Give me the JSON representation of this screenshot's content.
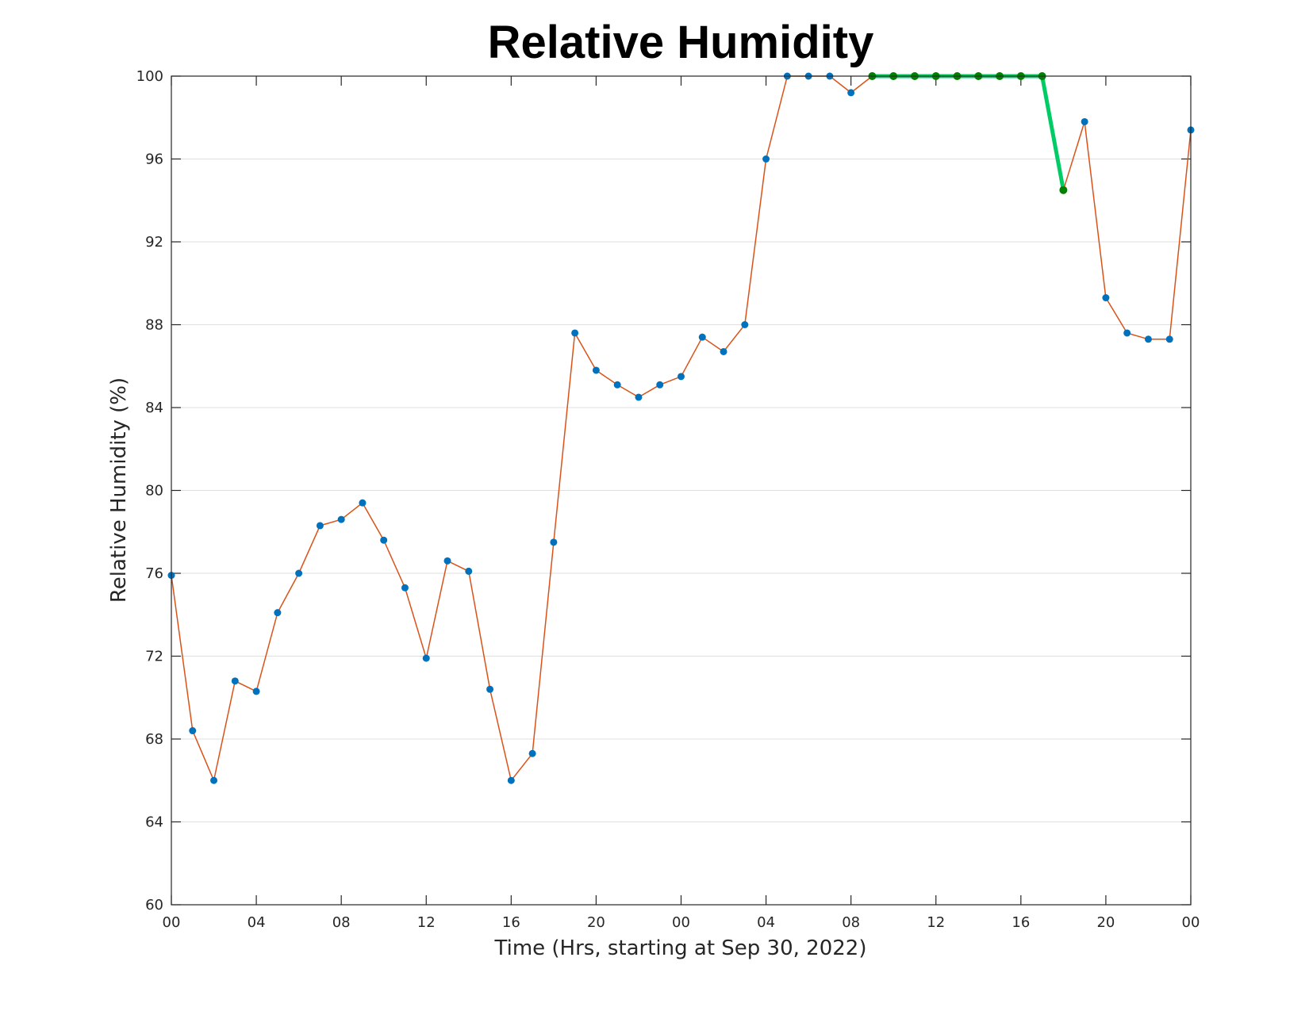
{
  "chart_data": {
    "type": "line",
    "title": "Relative Humidity",
    "xlabel": "Time (Hrs, starting at Sep 30, 2022)",
    "ylabel": "Relative Humidity (%)",
    "ylim": [
      60,
      100
    ],
    "xlim": [
      0,
      48
    ],
    "yticks": [
      60,
      64,
      68,
      72,
      76,
      80,
      84,
      88,
      92,
      96,
      100
    ],
    "xticks": [
      0,
      4,
      8,
      12,
      16,
      20,
      24,
      28,
      32,
      36,
      40,
      44,
      48
    ],
    "xtick_labels": [
      "00",
      "04",
      "08",
      "12",
      "16",
      "20",
      "00",
      "04",
      "08",
      "12",
      "16",
      "20",
      "00"
    ],
    "grid": "horizontal",
    "colors": {
      "line": "#d95319",
      "marker": "#0072bd",
      "highlight_line": "#00cc66",
      "highlight_marker": "#008000"
    },
    "series": [
      {
        "x": [
          0,
          1,
          2,
          3,
          4,
          5,
          6,
          7,
          8,
          9,
          10,
          11,
          12,
          13,
          14,
          15,
          16,
          17,
          18,
          19,
          20,
          21,
          22,
          23,
          24,
          25,
          26,
          27,
          28,
          29,
          30,
          31,
          32,
          33,
          34,
          35,
          36,
          37,
          38,
          39,
          40,
          41,
          42,
          43,
          44,
          45,
          46,
          47,
          48
        ],
        "values": [
          75.9,
          68.4,
          66.0,
          70.8,
          70.3,
          74.1,
          76.0,
          78.3,
          78.6,
          79.4,
          77.6,
          75.3,
          71.9,
          76.6,
          76.1,
          70.4,
          66.0,
          67.3,
          77.5,
          87.6,
          85.8,
          85.1,
          84.5,
          85.1,
          85.5,
          87.4,
          86.7,
          88.0,
          96.0,
          100,
          100,
          100,
          99.2,
          100,
          100,
          100,
          100,
          100,
          100,
          100,
          100,
          100,
          94.5,
          97.8,
          89.3,
          87.6,
          87.3,
          87.3,
          97.4
        ]
      },
      {
        "x": [
          33,
          34,
          35,
          36,
          37,
          38,
          39,
          40,
          41,
          42
        ],
        "values": [
          100,
          100,
          100,
          100,
          100,
          100,
          100,
          100,
          100,
          94.5
        ]
      }
    ]
  }
}
